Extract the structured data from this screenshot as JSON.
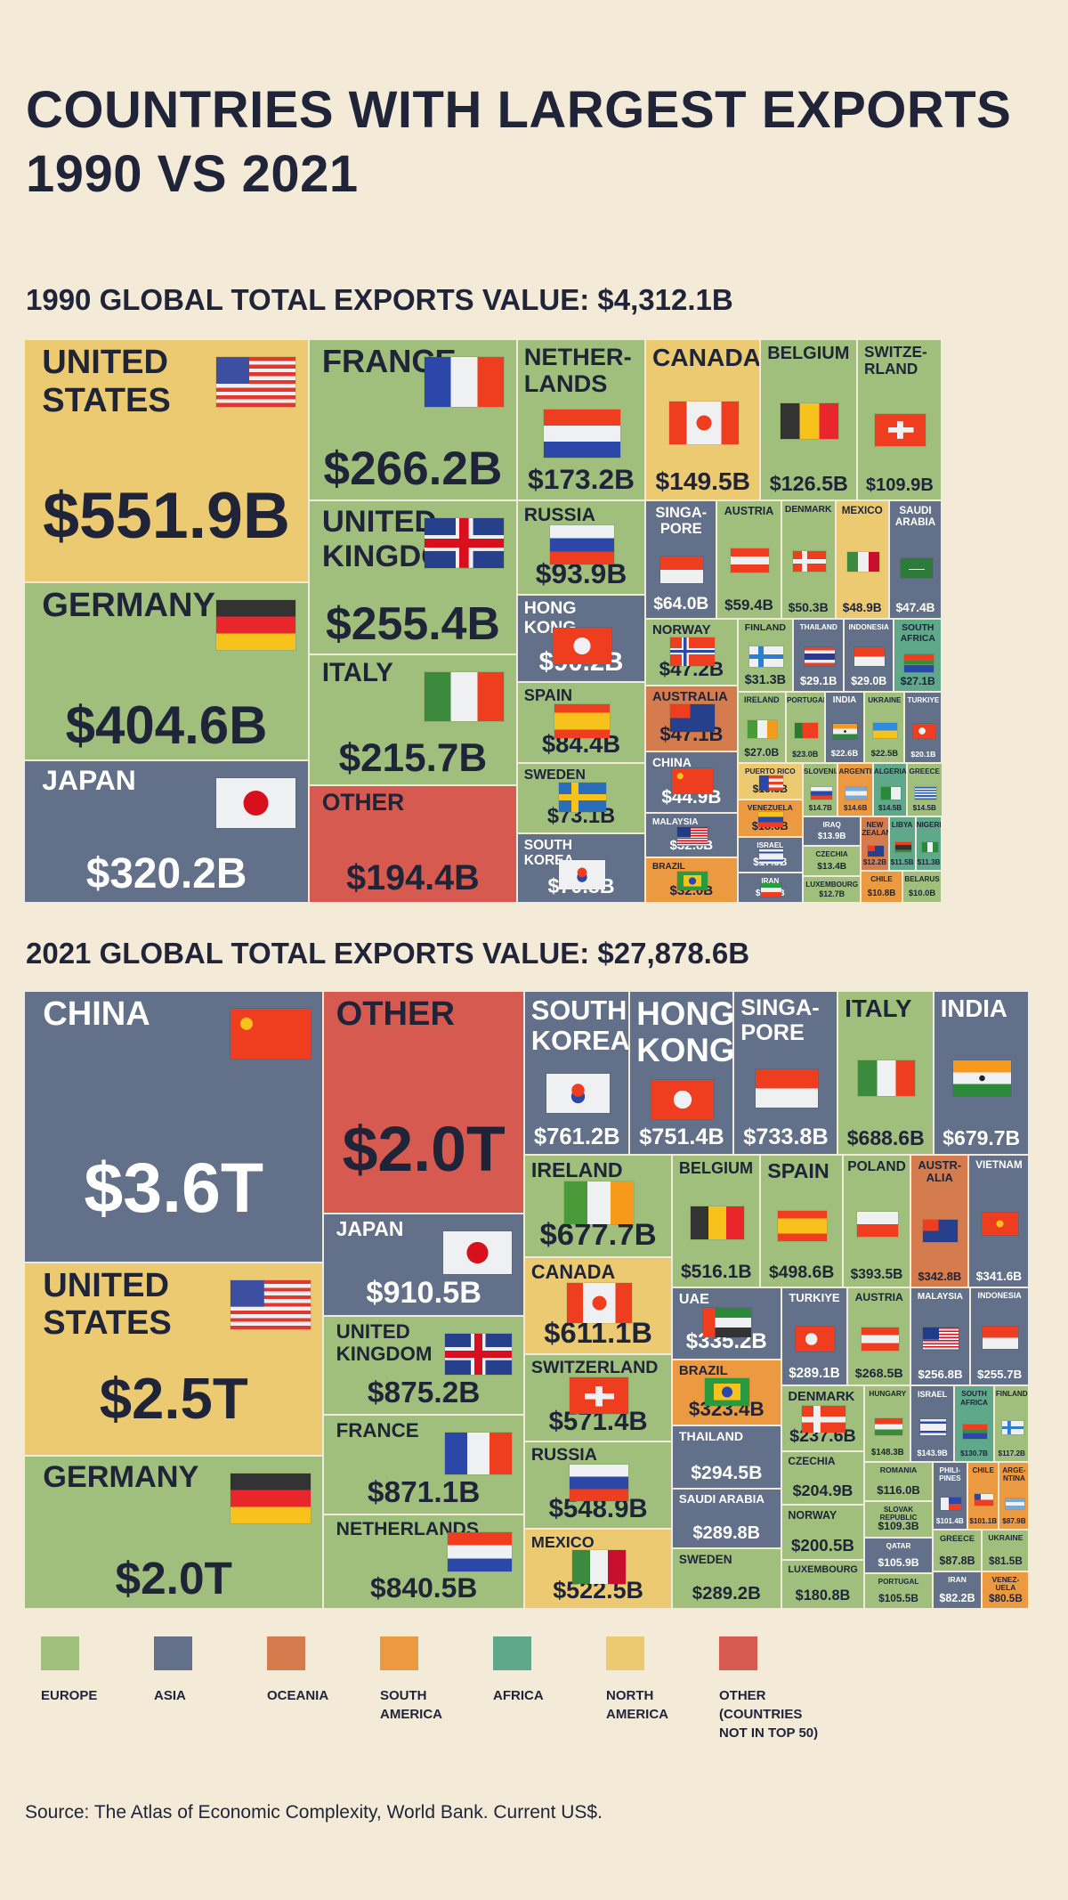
{
  "title": "COUNTRIES WITH LARGEST EXPORTS\n1990 VS 2021",
  "source": "Source: The Atlas of Economic Complexity, World Bank. Current US$.",
  "regions": {
    "E": {
      "label": "EUROPE",
      "color": "#a0bf7c"
    },
    "A": {
      "label": "ASIA",
      "color": "#627089"
    },
    "O": {
      "label": "OCEANIA",
      "color": "#d57c4e"
    },
    "S": {
      "label": "SOUTH\nAMERICA",
      "color": "#ec9a42"
    },
    "F": {
      "label": "AFRICA",
      "color": "#5fa88a"
    },
    "N": {
      "label": "NORTH\nAMERICA",
      "color": "#ebca72"
    },
    "X": {
      "label": "OTHER (COUNTRIES\nNOT IN TOP 50)",
      "color": "#d65a50"
    }
  },
  "legend_order": [
    "E",
    "A",
    "O",
    "S",
    "F",
    "N",
    "X"
  ],
  "chart_data": [
    {
      "type": "treemap",
      "title": "1990 GLOBAL TOTAL EXPORTS VALUE: $4,312.1B",
      "items": [
        {
          "label": "UNITED\nSTATES",
          "value": "$551.9B",
          "region": "N",
          "flag": "us"
        },
        {
          "label": "GERMANY",
          "value": "$404.6B",
          "region": "E",
          "flag": "de"
        },
        {
          "label": "JAPAN",
          "value": "$320.2B",
          "region": "A",
          "flag": "jp"
        },
        {
          "label": "FRANCE",
          "value": "$266.2B",
          "region": "E",
          "flag": "fr"
        },
        {
          "label": "UNITED\nKINGDOM",
          "value": "$255.4B",
          "region": "E",
          "flag": "gb"
        },
        {
          "label": "ITALY",
          "value": "$215.7B",
          "region": "E",
          "flag": "it"
        },
        {
          "label": "OTHER",
          "value": "$194.4B",
          "region": "X",
          "flag": ""
        },
        {
          "label": "NETHER-\nLANDS",
          "value": "$173.2B",
          "region": "E",
          "flag": "nl"
        },
        {
          "label": "CANADA",
          "value": "$149.5B",
          "region": "N",
          "flag": "ca"
        },
        {
          "label": "BELGIUM",
          "value": "$126.5B",
          "region": "E",
          "flag": "be"
        },
        {
          "label": "SWITZE-\nRLAND",
          "value": "$109.9B",
          "region": "E",
          "flag": "ch"
        },
        {
          "label": "RUSSIA",
          "value": "$93.9B",
          "region": "E",
          "flag": "ru"
        },
        {
          "label": "HONG\nKONG",
          "value": "$90.2B",
          "region": "A",
          "flag": "hk"
        },
        {
          "label": "SPAIN",
          "value": "$84.4B",
          "region": "E",
          "flag": "es"
        },
        {
          "label": "SWEDEN",
          "value": "$73.1B",
          "region": "E",
          "flag": "se"
        },
        {
          "label": "SOUTH\nKOREA",
          "value": "$70.8B",
          "region": "A",
          "flag": "kr"
        },
        {
          "label": "SINGA-\nPORE",
          "value": "$64.0B",
          "region": "A",
          "flag": "sg"
        },
        {
          "label": "AUSTRIA",
          "value": "$59.4B",
          "region": "E",
          "flag": "at"
        },
        {
          "label": "DENMARK",
          "value": "$50.3B",
          "region": "E",
          "flag": "dk"
        },
        {
          "label": "MEXICO",
          "value": "$48.9B",
          "region": "N",
          "flag": "mx"
        },
        {
          "label": "SAUDI\nARABIA",
          "value": "$47.4B",
          "region": "A",
          "flag": "sa"
        },
        {
          "label": "NORWAY",
          "value": "$47.2B",
          "region": "E",
          "flag": "no"
        },
        {
          "label": "AUSTRALIA",
          "value": "$47.1B",
          "region": "O",
          "flag": "au"
        },
        {
          "label": "CHINA",
          "value": "$44.9B",
          "region": "A",
          "flag": "cn"
        },
        {
          "label": "FINLAND",
          "value": "$31.3B",
          "region": "E",
          "flag": "fi"
        },
        {
          "label": "THAILAND",
          "value": "$29.1B",
          "region": "A",
          "flag": "th"
        },
        {
          "label": "INDONESIA",
          "value": "$29.0B",
          "region": "A",
          "flag": "id"
        },
        {
          "label": "SOUTH\nAFRICA",
          "value": "$27.1B",
          "region": "F",
          "flag": "za"
        },
        {
          "label": "MALAYSIA",
          "value": "$32.8B",
          "region": "A",
          "flag": "my"
        },
        {
          "label": "BRAZIL",
          "value": "$32.0B",
          "region": "S",
          "flag": "br"
        },
        {
          "label": "IRELAND",
          "value": "$27.0B",
          "region": "E",
          "flag": "ie"
        },
        {
          "label": "PORTUGAL",
          "value": "$23.0B",
          "region": "E",
          "flag": "pt"
        },
        {
          "label": "INDIA",
          "value": "$22.6B",
          "region": "A",
          "flag": "in"
        },
        {
          "label": "UKRAINE",
          "value": "$22.5B",
          "region": "E",
          "flag": "ua"
        },
        {
          "label": "TURKIYE",
          "value": "$20.1B",
          "region": "A",
          "flag": "tr"
        },
        {
          "label": "PUERTO RICO",
          "value": "$19.3B",
          "region": "N",
          "flag": "pr"
        },
        {
          "label": "VENEZUELA",
          "value": "$18.6B",
          "region": "S",
          "flag": "ve"
        },
        {
          "label": "ISRAEL",
          "value": "$17.5B",
          "region": "A",
          "flag": "il"
        },
        {
          "label": "IRAN",
          "value": "$16.6B",
          "region": "A",
          "flag": "ir"
        },
        {
          "label": "SLOVENIA",
          "value": "$14.7B",
          "region": "E",
          "flag": "si"
        },
        {
          "label": "ARGENTINA",
          "value": "$14.6B",
          "region": "S",
          "flag": "ar"
        },
        {
          "label": "ALGERIA",
          "value": "$14.5B",
          "region": "F",
          "flag": "dz"
        },
        {
          "label": "GREECE",
          "value": "$14.5B",
          "region": "E",
          "flag": "gr"
        },
        {
          "label": "IRAQ",
          "value": "$13.9B",
          "region": "A",
          "flag": ""
        },
        {
          "label": "CZECHIA",
          "value": "$13.4B",
          "region": "E",
          "flag": ""
        },
        {
          "label": "LUXEMBOURG",
          "value": "$12.7B",
          "region": "E",
          "flag": ""
        },
        {
          "label": "NEW\nZEALAND",
          "value": "$12.2B",
          "region": "O",
          "flag": "nz"
        },
        {
          "label": "LIBYA",
          "value": "$11.5B",
          "region": "F",
          "flag": "ly"
        },
        {
          "label": "NIGERIA",
          "value": "$11.3B",
          "region": "F",
          "flag": "ng"
        },
        {
          "label": "CHILE",
          "value": "$10.8B",
          "region": "S",
          "flag": ""
        },
        {
          "label": "BELARUS",
          "value": "$10.0B",
          "region": "E",
          "flag": ""
        }
      ]
    },
    {
      "type": "treemap",
      "title": "2021 GLOBAL TOTAL EXPORTS VALUE: $27,878.6B",
      "items": [
        {
          "label": "CHINA",
          "value": "$3.6T",
          "region": "A",
          "flag": "cn"
        },
        {
          "label": "UNITED\nSTATES",
          "value": "$2.5T",
          "region": "N",
          "flag": "us"
        },
        {
          "label": "GERMANY",
          "value": "$2.0T",
          "region": "E",
          "flag": "de"
        },
        {
          "label": "OTHER",
          "value": "$2.0T",
          "region": "X",
          "flag": ""
        },
        {
          "label": "JAPAN",
          "value": "$910.5B",
          "region": "A",
          "flag": "jp"
        },
        {
          "label": "UNITED\nKINGDOM",
          "value": "$875.2B",
          "region": "E",
          "flag": "gb"
        },
        {
          "label": "FRANCE",
          "value": "$871.1B",
          "region": "E",
          "flag": "fr"
        },
        {
          "label": "NETHERLANDS",
          "value": "$840.5B",
          "region": "E",
          "flag": "nl"
        },
        {
          "label": "SOUTH\nKOREA",
          "value": "$761.2B",
          "region": "A",
          "flag": "kr"
        },
        {
          "label": "HONG\nKONG",
          "value": "$751.4B",
          "region": "A",
          "flag": "hk"
        },
        {
          "label": "SINGA-\nPORE",
          "value": "$733.8B",
          "region": "A",
          "flag": "sg"
        },
        {
          "label": "ITALY",
          "value": "$688.6B",
          "region": "E",
          "flag": "it"
        },
        {
          "label": "INDIA",
          "value": "$679.7B",
          "region": "A",
          "flag": "in"
        },
        {
          "label": "IRELAND",
          "value": "$677.7B",
          "region": "E",
          "flag": "ie"
        },
        {
          "label": "CANADA",
          "value": "$611.1B",
          "region": "N",
          "flag": "ca"
        },
        {
          "label": "SWITZERLAND",
          "value": "$571.4B",
          "region": "E",
          "flag": "ch"
        },
        {
          "label": "RUSSIA",
          "value": "$548.9B",
          "region": "E",
          "flag": "ru"
        },
        {
          "label": "MEXICO",
          "value": "$522.5B",
          "region": "N",
          "flag": "mx"
        },
        {
          "label": "BELGIUM",
          "value": "$516.1B",
          "region": "E",
          "flag": "be"
        },
        {
          "label": "SPAIN",
          "value": "$498.6B",
          "region": "E",
          "flag": "es"
        },
        {
          "label": "POLAND",
          "value": "$393.5B",
          "region": "E",
          "flag": "pl"
        },
        {
          "label": "AUSTR-\nALIA",
          "value": "$342.8B",
          "region": "O",
          "flag": "au"
        },
        {
          "label": "VIETNAM",
          "value": "$341.6B",
          "region": "A",
          "flag": "vn"
        },
        {
          "label": "UAE",
          "value": "$335.2B",
          "region": "A",
          "flag": "ae"
        },
        {
          "label": "BRAZIL",
          "value": "$323.4B",
          "region": "S",
          "flag": "br"
        },
        {
          "label": "THAILAND",
          "value": "$294.5B",
          "region": "A",
          "flag": ""
        },
        {
          "label": "SAUDI ARABIA",
          "value": "$289.8B",
          "region": "A",
          "flag": ""
        },
        {
          "label": "SWEDEN",
          "value": "$289.2B",
          "region": "E",
          "flag": ""
        },
        {
          "label": "TURKIYE",
          "value": "$289.1B",
          "region": "A",
          "flag": "tr"
        },
        {
          "label": "AUSTRIA",
          "value": "$268.5B",
          "region": "E",
          "flag": "at"
        },
        {
          "label": "MALAYSIA",
          "value": "$256.8B",
          "region": "A",
          "flag": "my"
        },
        {
          "label": "INDONESIA",
          "value": "$255.7B",
          "region": "A",
          "flag": "id"
        },
        {
          "label": "DENMARK",
          "value": "$237.6B",
          "region": "E",
          "flag": "dk"
        },
        {
          "label": "CZECHIA",
          "value": "$204.9B",
          "region": "E",
          "flag": ""
        },
        {
          "label": "NORWAY",
          "value": "$200.5B",
          "region": "E",
          "flag": ""
        },
        {
          "label": "LUXEMBOURG",
          "value": "$180.8B",
          "region": "E",
          "flag": ""
        },
        {
          "label": "HUNGARY",
          "value": "$148.3B",
          "region": "E",
          "flag": "hu"
        },
        {
          "label": "ISRAEL",
          "value": "$143.9B",
          "region": "A",
          "flag": "il"
        },
        {
          "label": "SOUTH\nAFRICA",
          "value": "$130.7B",
          "region": "F",
          "flag": "za"
        },
        {
          "label": "FINLAND",
          "value": "$117.2B",
          "region": "E",
          "flag": "fi"
        },
        {
          "label": "ROMANIA",
          "value": "$116.0B",
          "region": "E",
          "flag": ""
        },
        {
          "label": "SLOVAK\nREPUBLIC",
          "value": "$109.3B",
          "region": "E",
          "flag": ""
        },
        {
          "label": "QATAR",
          "value": "$105.9B",
          "region": "A",
          "flag": ""
        },
        {
          "label": "PORTUGAL",
          "value": "$105.5B",
          "region": "E",
          "flag": ""
        },
        {
          "label": "PHILI-\nPINES",
          "value": "$101.4B",
          "region": "A",
          "flag": "ph"
        },
        {
          "label": "CHILE",
          "value": "$101.1B",
          "region": "S",
          "flag": "cl"
        },
        {
          "label": "ARGE-\nNTINA",
          "value": "$87.9B",
          "region": "S",
          "flag": "ar"
        },
        {
          "label": "GREECE",
          "value": "$87.8B",
          "region": "E",
          "flag": ""
        },
        {
          "label": "UKRAINE",
          "value": "$81.5B",
          "region": "E",
          "flag": ""
        },
        {
          "label": "IRAN",
          "value": "$82.2B",
          "region": "A",
          "flag": ""
        },
        {
          "label": "VENEZ-\nUELA",
          "value": "$80.5B",
          "region": "S",
          "flag": ""
        }
      ]
    }
  ]
}
